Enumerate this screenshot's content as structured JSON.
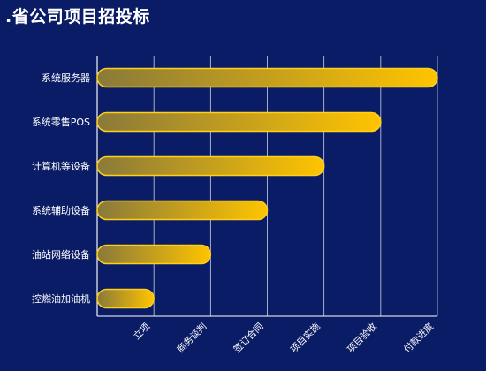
{
  "chart_data": {
    "type": "bar",
    "orientation": "horizontal",
    "title": ".省公司项目招投标",
    "categories": [
      "系统服务器",
      "系统零售POS",
      "计算机等设备",
      "系统辅助设备",
      "油站网络设备",
      "控燃油加油机"
    ],
    "values": [
      6,
      5,
      4,
      3,
      2,
      1
    ],
    "x_tick_labels": [
      "立项",
      "商务谈判",
      "签订合同",
      "项目实施",
      "项目验收",
      "付款进度"
    ],
    "xlim": [
      0,
      6
    ],
    "grid": true,
    "colors": {
      "background": "#0b1c66",
      "bar_start": "#8a7a3a",
      "bar_end": "#ffc400",
      "bar_stroke": "#ffcf1a",
      "grid": "#ffffff"
    }
  }
}
